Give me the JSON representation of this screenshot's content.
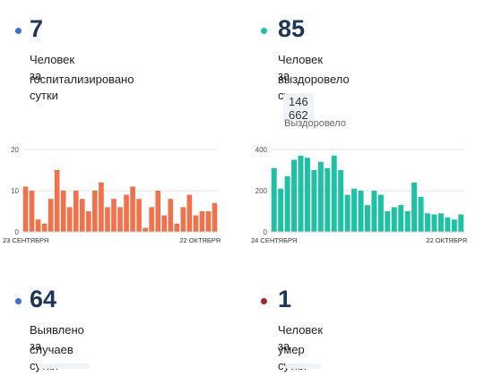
{
  "hospitalized": {
    "number": "7",
    "line1": "Человек госпитализировано",
    "line2": "за сутки"
  },
  "recovered": {
    "number": "85",
    "line1": "Человек выздоровело",
    "line2": "за сутки",
    "total": "146 662",
    "total_label": "Выздоровело"
  },
  "cases": {
    "number": "64",
    "line1": "Выявлено случаев",
    "line2": "за сутки"
  },
  "deaths": {
    "number": "1",
    "line1": "Человек умер",
    "line2": "за сутки"
  },
  "colors": {
    "hospitalized_dot": "#3b6fd4",
    "recovered_dot": "#1fc1a4",
    "cases_dot": "#3b6fd4",
    "deaths_dot": "#a8252c",
    "bar_orange": "#f0714a",
    "bar_teal": "#1fc1a4",
    "number": "#1d3557"
  },
  "chart_data": [
    {
      "type": "bar",
      "name": "hospitalized-chart",
      "x_start_label": "23 СЕНТЯБРЯ",
      "x_end_label": "22 ОКТЯБРЯ",
      "ylim": [
        0,
        20
      ],
      "yticks": [
        0,
        10,
        20
      ],
      "grid": true,
      "values": [
        11,
        10,
        3,
        2,
        8,
        15,
        10,
        6,
        10,
        8,
        5,
        10,
        12,
        6,
        8,
        6,
        9,
        11,
        8,
        1,
        6,
        10,
        4,
        8,
        2,
        6,
        9,
        4,
        5,
        5,
        7
      ]
    },
    {
      "type": "bar",
      "name": "recovered-chart",
      "x_start_label": "24 СЕНТЯБРЯ",
      "x_end_label": "22 ОКТЯБРЯ",
      "ylim": [
        0,
        400
      ],
      "yticks": [
        0,
        200,
        400
      ],
      "grid": true,
      "values": [
        310,
        210,
        270,
        350,
        370,
        360,
        300,
        340,
        310,
        370,
        300,
        180,
        210,
        200,
        130,
        200,
        180,
        100,
        120,
        130,
        100,
        240,
        170,
        90,
        85,
        90,
        70,
        60,
        85
      ]
    }
  ]
}
